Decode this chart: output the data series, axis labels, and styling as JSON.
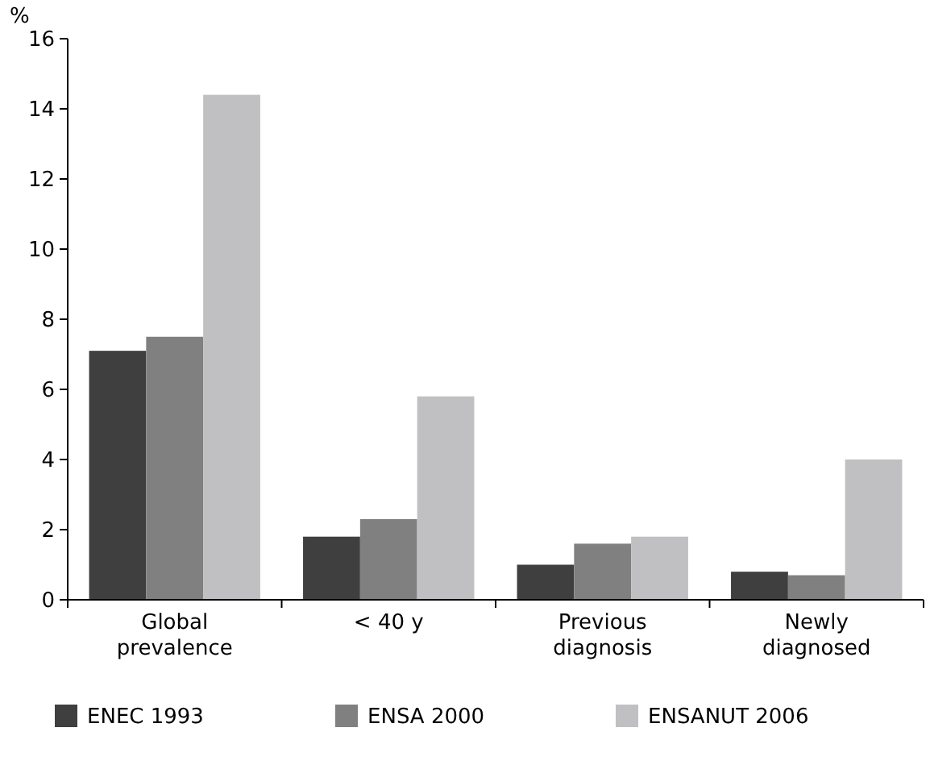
{
  "chart_data": {
    "type": "bar",
    "ylabel": "%",
    "categories": [
      "Global\nprevalence",
      "< 40 y",
      "Previous\ndiagnosis",
      "Newly\ndiagnosed"
    ],
    "series": [
      {
        "name": "ENEC 1993",
        "color": "#3f3f3f",
        "values": [
          7.1,
          1.8,
          1.0,
          0.8
        ]
      },
      {
        "name": "ENSA 2000",
        "color": "#808080",
        "values": [
          7.5,
          2.3,
          1.6,
          0.7
        ]
      },
      {
        "name": "ENSANUT 2006",
        "color": "#c0c0c3",
        "values": [
          14.4,
          5.8,
          1.8,
          4.0
        ]
      }
    ],
    "ylim": [
      0,
      16
    ],
    "yticks": [
      0,
      2,
      4,
      6,
      8,
      10,
      12,
      14,
      16
    ],
    "grid": false,
    "legend": "bottom"
  }
}
